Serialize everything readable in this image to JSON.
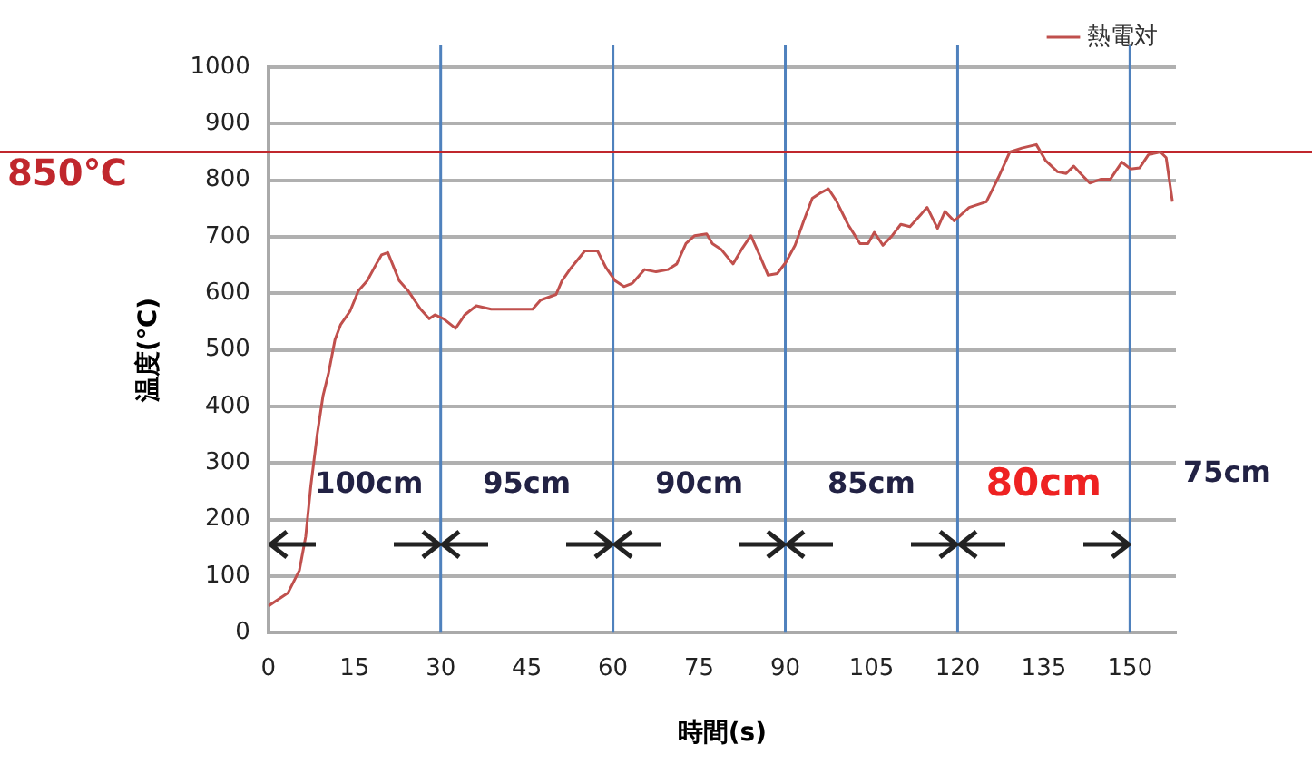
{
  "chart_data": {
    "type": "line",
    "xlabel": "時間(s)",
    "ylabel": "温度(℃)",
    "xlim": [
      0,
      158
    ],
    "xticks": [
      0,
      15,
      30,
      45,
      60,
      75,
      90,
      105,
      120,
      135,
      150
    ],
    "ylim": [
      0,
      1000
    ],
    "yticks": [
      0,
      100,
      200,
      300,
      400,
      500,
      600,
      700,
      800,
      900,
      1000
    ],
    "grid": "y",
    "legend": "top right",
    "marker": "none",
    "line_style": "solid",
    "series": [
      {
        "name": "熱電対",
        "color": "#c0504d",
        "x": [
          0,
          3.4,
          5.4,
          6.5,
          7.4,
          8.5,
          9.5,
          10.5,
          11.6,
          12.6,
          14.2,
          15.7,
          17.2,
          18.8,
          19.7,
          20.8,
          22.8,
          24.3,
          26.5,
          28,
          29,
          30.5,
          32.6,
          34.2,
          36.2,
          38.8,
          41.9,
          43.9,
          46,
          47.4,
          50.1,
          51.1,
          52.7,
          55.1,
          57.3,
          58.8,
          60.4,
          61.9,
          63.4,
          65.5,
          67.5,
          69.6,
          71.1,
          72.7,
          74.2,
          76.3,
          77.3,
          78.8,
          80.9,
          82.4,
          84,
          85.5,
          87,
          88.6,
          90.1,
          91.7,
          93.2,
          94.7,
          96.2,
          97.5,
          98.8,
          100.9,
          103,
          104.4,
          105.5,
          107,
          108.6,
          110.1,
          111.7,
          113.2,
          114.7,
          116.5,
          117.8,
          119.4,
          122,
          125,
          127.1,
          129.1,
          131.2,
          133.7,
          135.3,
          137.4,
          138.9,
          140.2,
          141.4,
          143,
          145,
          146.6,
          148.6,
          150.1,
          151.7,
          153.2,
          155.3,
          156.3,
          157.4
        ],
        "values": [
          47,
          70,
          110,
          170,
          260,
          350,
          418,
          460,
          518,
          545,
          568,
          605,
          622,
          652,
          668,
          672,
          622,
          605,
          572,
          555,
          562,
          555,
          538,
          562,
          578,
          572,
          572,
          572,
          572,
          588,
          598,
          622,
          645,
          675,
          675,
          645,
          622,
          612,
          618,
          642,
          638,
          642,
          652,
          688,
          702,
          705,
          688,
          678,
          652,
          678,
          702,
          668,
          632,
          635,
          655,
          685,
          728,
          768,
          778,
          785,
          765,
          722,
          688,
          688,
          708,
          685,
          702,
          722,
          718,
          735,
          752,
          715,
          745,
          728,
          752,
          762,
          805,
          850,
          857,
          863,
          835,
          815,
          812,
          825,
          812,
          795,
          802,
          802,
          832,
          820,
          822,
          845,
          850,
          840,
          762
        ]
      }
    ],
    "ref_lines": [
      {
        "axis": "y",
        "value": 850,
        "label": "850℃",
        "color": "#c0272d"
      },
      {
        "axis": "x",
        "value": 30,
        "color": "#4f81bd"
      },
      {
        "axis": "x",
        "value": 60,
        "color": "#4f81bd"
      },
      {
        "axis": "x",
        "value": 90,
        "color": "#4f81bd"
      },
      {
        "axis": "x",
        "value": 120,
        "color": "#4f81bd"
      },
      {
        "axis": "x",
        "value": 150,
        "color": "#4f81bd"
      }
    ],
    "annotations": [
      "100cm",
      "95cm",
      "90cm",
      "85cm",
      "80cm",
      "75cm"
    ]
  }
}
